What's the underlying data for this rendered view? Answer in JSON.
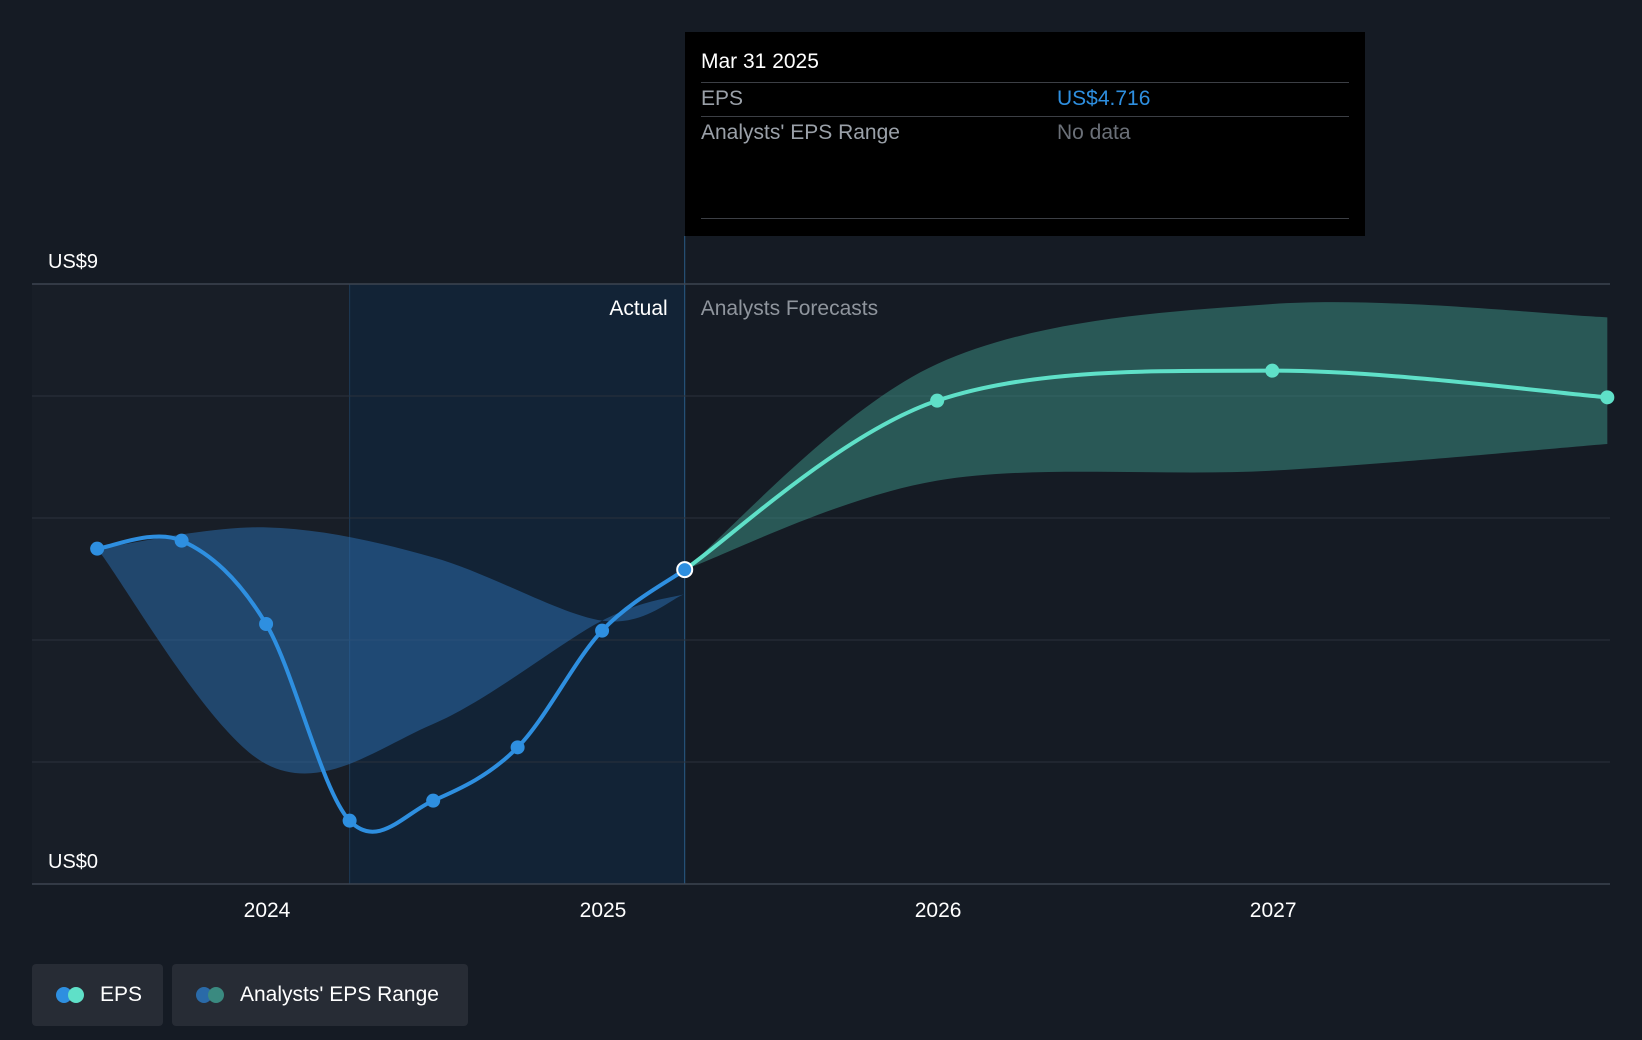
{
  "chart_data": {
    "type": "line",
    "y_axis": {
      "min": 0,
      "max": 9,
      "top_label": "US$9",
      "bottom_label": "US$0"
    },
    "x_axis": {
      "ticks": [
        "2024",
        "2025",
        "2026",
        "2027"
      ]
    },
    "region_labels": {
      "actual": "Actual",
      "forecast": "Analysts Forecasts"
    },
    "series": [
      {
        "name": "EPS",
        "kind": "actual",
        "color": "#2e8fe0",
        "points": [
          {
            "x": "2023-06-30",
            "y": 5.03
          },
          {
            "x": "2023-09-30",
            "y": 5.15
          },
          {
            "x": "2023-12-31",
            "y": 3.9
          },
          {
            "x": "2024-03-31",
            "y": 0.95
          },
          {
            "x": "2024-06-30",
            "y": 1.25
          },
          {
            "x": "2024-09-30",
            "y": 2.05
          },
          {
            "x": "2024-12-31",
            "y": 3.8
          },
          {
            "x": "2025-03-31",
            "y": 4.716
          }
        ]
      },
      {
        "name": "EPS",
        "kind": "forecast",
        "color": "#5fe0c8",
        "points": [
          {
            "x": "2025-03-31",
            "y": 4.716
          },
          {
            "x": "2025-12-31",
            "y": 7.25
          },
          {
            "x": "2026-12-31",
            "y": 7.7
          },
          {
            "x": "2027-12-31",
            "y": 7.3
          }
        ]
      }
    ],
    "ranges": [
      {
        "name": "Analysts' EPS Range",
        "kind": "actual",
        "color": "#2a6aa8",
        "band": [
          {
            "x": "2023-06-30",
            "low": 5.03,
            "high": 5.03
          },
          {
            "x": "2023-12-31",
            "low": 1.8,
            "high": 5.35
          },
          {
            "x": "2024-06-30",
            "low": 2.4,
            "high": 4.9
          },
          {
            "x": "2024-12-31",
            "low": 3.95,
            "high": 3.95
          },
          {
            "x": "2025-03-31",
            "low": 4.35,
            "high": 4.35
          }
        ]
      },
      {
        "name": "Analysts' EPS Range",
        "kind": "forecast",
        "color": "#3a8a80",
        "band": [
          {
            "x": "2025-03-31",
            "low": 4.716,
            "high": 4.716
          },
          {
            "x": "2025-12-31",
            "low": 6.05,
            "high": 7.8
          },
          {
            "x": "2026-12-31",
            "low": 6.2,
            "high": 8.7
          },
          {
            "x": "2027-12-31",
            "low": 6.6,
            "high": 8.5
          }
        ]
      }
    ],
    "highlighted_point": {
      "x": "2025-03-31",
      "y": 4.716
    }
  },
  "tooltip": {
    "date": "Mar 31 2025",
    "rows": [
      {
        "label": "EPS",
        "value": "US$4.716",
        "value_color": "#2e8fe0"
      },
      {
        "label": "Analysts' EPS Range",
        "value": "No data",
        "value_color": "#6b7078"
      }
    ]
  },
  "legend": {
    "items": [
      {
        "label": "EPS",
        "colors": [
          "#2e8fe0",
          "#5fe0c8"
        ]
      },
      {
        "label": "Analysts' EPS Range",
        "colors": [
          "#2a6aa8",
          "#3a8a80"
        ]
      }
    ]
  }
}
